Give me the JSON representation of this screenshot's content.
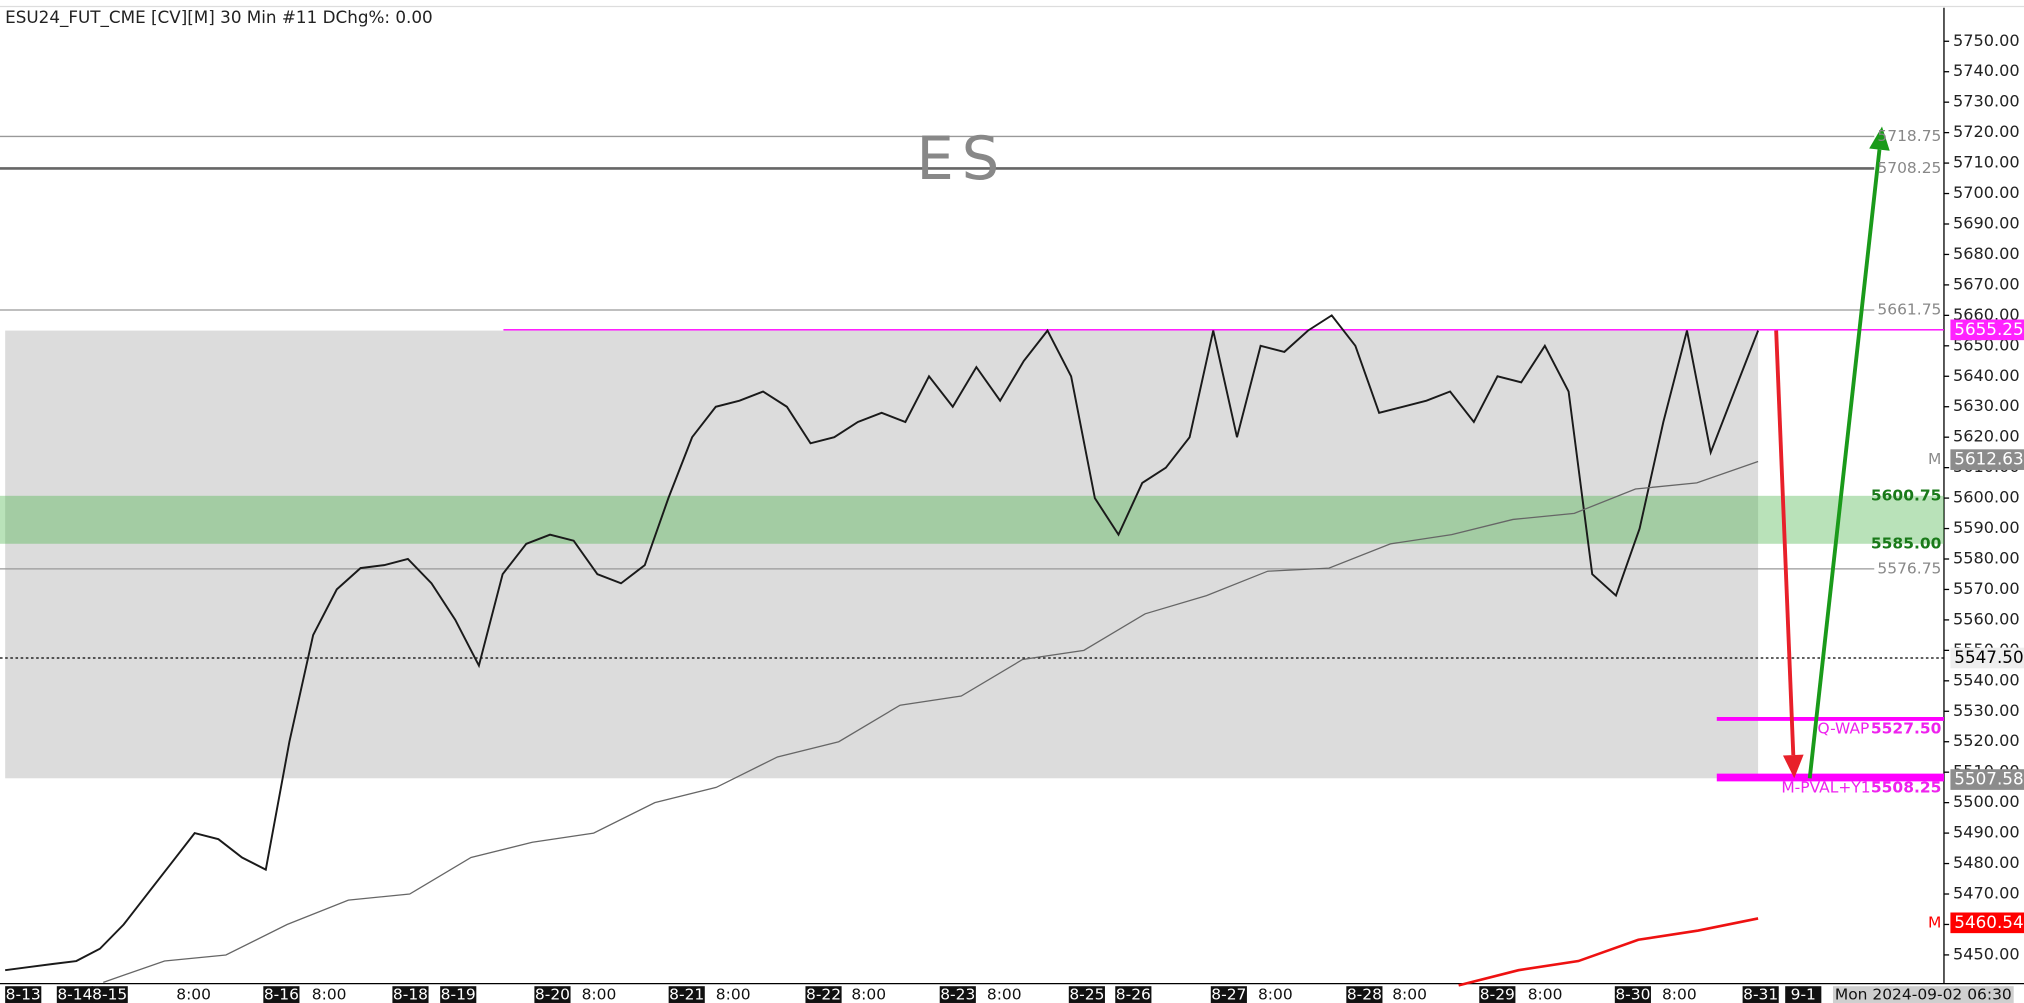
{
  "chart_data": {
    "type": "line",
    "title": "ESU24_FUT_CME [CV][M] 30 Min #11 DChg%: 0.00",
    "watermark": "ES",
    "ylim": [
      5441,
      5761
    ],
    "yticks": [
      {
        "value": 5450,
        "label": "5450.00"
      },
      {
        "value": 5460,
        "label": "5460.00"
      },
      {
        "value": 5470,
        "label": "5470.00"
      },
      {
        "value": 5480,
        "label": "5480.00"
      },
      {
        "value": 5490,
        "label": "5490.00"
      },
      {
        "value": 5500,
        "label": "5500.00"
      },
      {
        "value": 5510,
        "label": "5510.00"
      },
      {
        "value": 5520,
        "label": "5520.00"
      },
      {
        "value": 5530,
        "label": "5530.00"
      },
      {
        "value": 5540,
        "label": "5540.00"
      },
      {
        "value": 5550,
        "label": "5550.00"
      },
      {
        "value": 5560,
        "label": "5560.00"
      },
      {
        "value": 5570,
        "label": "5570.00"
      },
      {
        "value": 5580,
        "label": "5580.00"
      },
      {
        "value": 5590,
        "label": "5590.00"
      },
      {
        "value": 5600,
        "label": "5600.00"
      },
      {
        "value": 5610,
        "label": "5610.00"
      },
      {
        "value": 5620,
        "label": "5620.00"
      },
      {
        "value": 5630,
        "label": "5630.00"
      },
      {
        "value": 5640,
        "label": "5640.00"
      },
      {
        "value": 5650,
        "label": "5650.00"
      },
      {
        "value": 5660,
        "label": "5660.00"
      },
      {
        "value": 5670,
        "label": "5670.00"
      },
      {
        "value": 5680,
        "label": "5680.00"
      },
      {
        "value": 5690,
        "label": "5690.00"
      },
      {
        "value": 5700,
        "label": "5700.00"
      },
      {
        "value": 5710,
        "label": "5710.00"
      },
      {
        "value": 5720,
        "label": "5720.00"
      },
      {
        "value": 5730,
        "label": "5730.00"
      },
      {
        "value": 5740,
        "label": "5740.00"
      },
      {
        "value": 5750,
        "label": "5750.00"
      }
    ],
    "x_labels": [
      "8-13",
      "8-14",
      "8-15",
      "8:00",
      "8-16",
      "8:00",
      "8-18",
      "8-19",
      "8-20",
      "8:00",
      "8-21",
      "8:00",
      "8-22",
      "8:00",
      "8-23",
      "8:00",
      "8-25",
      "8-26",
      "8-27",
      "8:00",
      "8-28",
      "8:00",
      "8-29",
      "8:00",
      "8-30",
      "8:00",
      "8-31",
      "9-1",
      "Mon 2024-09-02 06:30"
    ],
    "zones": [
      {
        "from": 5508,
        "to": 5655,
        "color": "#dcdcdc"
      },
      {
        "from": 5585,
        "to": 5600.75,
        "color": "rgba(70,180,70,0.38)"
      }
    ],
    "series": [
      {
        "color": "#1a1a1a",
        "values": [
          5445,
          5446,
          5447,
          5448,
          5452,
          5460,
          5470,
          5480,
          5490,
          5488,
          5482,
          5478,
          5520,
          5555,
          5570,
          5577,
          5578,
          5580,
          5572,
          5560,
          5545,
          5575,
          5585,
          5588,
          5586,
          5575,
          5572,
          5578,
          5600,
          5620,
          5630,
          5632,
          5635,
          5630,
          5618,
          5620,
          5625,
          5628,
          5625,
          5640,
          5630,
          5643,
          5632,
          5645,
          5655,
          5640,
          5600,
          5588,
          5605,
          5610,
          5620,
          5655,
          5620,
          5650,
          5648,
          5655,
          5660,
          5650,
          5628,
          5630,
          5632,
          5635,
          5625,
          5640,
          5638,
          5650,
          5635,
          5575,
          5568,
          5590,
          5625,
          5655,
          5615,
          5635,
          5655
        ]
      },
      {
        "color": "#666666",
        "values": [
          5441,
          5448,
          5450,
          5460,
          5468,
          5470,
          5482,
          5487,
          5490,
          5500,
          5505,
          5515,
          5520,
          5532,
          5535,
          5547,
          5550,
          5562,
          5568,
          5576,
          5577,
          5585,
          5588,
          5593,
          5595,
          5603,
          5605,
          5612
        ]
      },
      {
        "color": "#ee1111",
        "values": [
          5440,
          5445,
          5448,
          5455,
          5458,
          5462
        ]
      }
    ],
    "levels": [
      {
        "value": 5718.75,
        "color": "#999999",
        "style": "thin"
      },
      {
        "value": 5708.25,
        "color": "#666666",
        "style": "thick"
      },
      {
        "value": 5661.75,
        "color": "#999999",
        "style": "thin"
      },
      {
        "value": 5655.25,
        "color": "#ff00ff",
        "style": "thin"
      },
      {
        "value": 5576.75,
        "color": "#999999",
        "style": "thin"
      },
      {
        "value": 5547.5,
        "color": "#000000",
        "style": "dashed"
      },
      {
        "value": 5527.5,
        "color": "#ff00ff",
        "style": "short"
      },
      {
        "value": 5508.25,
        "color": "#ff00ff",
        "style": "shortthick"
      }
    ],
    "level_labels": [
      {
        "value": 5718.75,
        "color": "#888888"
      },
      {
        "value": 5708.25,
        "color": "#888888"
      },
      {
        "value": 5661.75,
        "color": "#888888"
      },
      {
        "value": 5600.75,
        "color": "#1a7a1a"
      },
      {
        "value": {
          "value": 5585,
          "label": "5585.00"
        },
        "color": "#1a7a1a"
      },
      {
        "value": 5576.75,
        "color": "#888888"
      },
      {
        "text": "Q-WAP",
        "value": {
          "value": 5527.5,
          "label": "5527.50"
        },
        "color": "#ee22ee"
      },
      {
        "text": "M-PVAL+Y1",
        "value": 5508.25,
        "color": "#ee22ee"
      }
    ],
    "price_tags": [
      {
        "value": 5655.25,
        "bg": "#ff22ff",
        "fg": "#ffffff"
      },
      {
        "text": "M",
        "value": 5612.63,
        "bg": "#8c8c8c",
        "fg": "#ffffff"
      },
      {
        "value": {
          "value": 5547.5,
          "label": "5547.50"
        },
        "bg": "#eeeeee",
        "fg": "#000000"
      },
      {
        "value": 5507.58,
        "bg": "#8c8c8c",
        "fg": "#ffffff"
      },
      {
        "text": "M",
        "value": 5460.54,
        "bg": "#ff0000",
        "fg": "#ffffff"
      }
    ],
    "arrows": [
      {
        "from": 5655,
        "to": 5508,
        "color": "#e8202a"
      },
      {
        "from": 5508,
        "to": 5722,
        "color": "#1a9a1a"
      }
    ]
  }
}
